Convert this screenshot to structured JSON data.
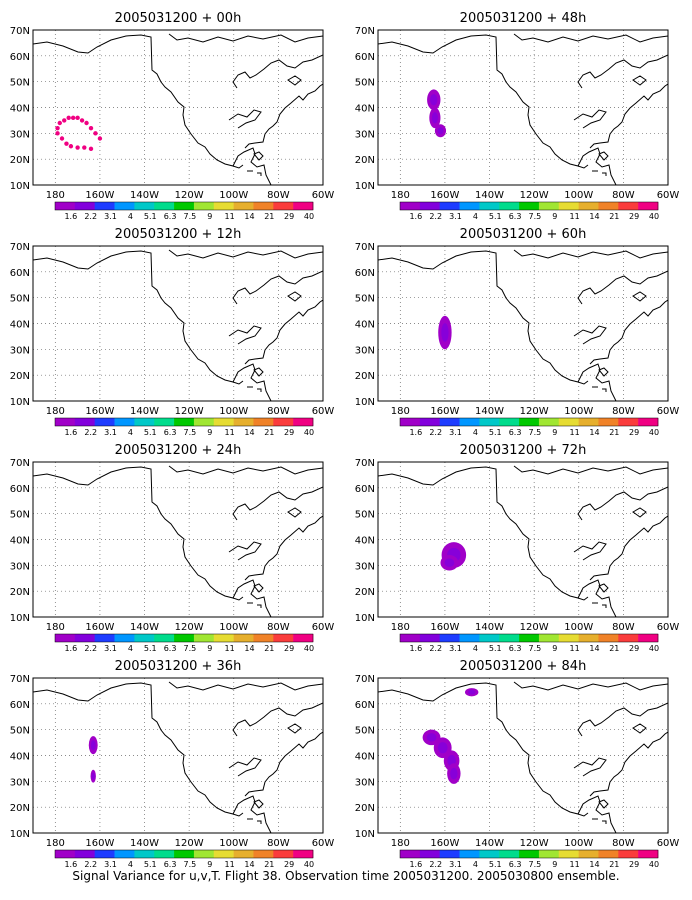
{
  "caption": "Signal Variance for u,v,T. Flight 38. Observation time 2005031200. 2005030800 ensemble.",
  "map_axes": {
    "x_ticks": [
      "180",
      "160W",
      "140W",
      "120W",
      "100W",
      "80W",
      "60W"
    ],
    "y_ticks": [
      "70N",
      "60N",
      "50N",
      "40N",
      "30N",
      "20N",
      "10N"
    ],
    "lon_range": [
      -190,
      -60
    ],
    "lat_range": [
      10,
      70
    ],
    "gridlines": true
  },
  "colorbar": {
    "labels": [
      "1.6",
      "2.2",
      "3.1",
      "4",
      "5.1",
      "6.3",
      "7.5",
      "9",
      "11",
      "14",
      "21",
      "29",
      "40"
    ],
    "colors": [
      "#a000c8",
      "#8200dc",
      "#1e3cff",
      "#0096ff",
      "#00c8c8",
      "#00dc8c",
      "#00c800",
      "#a0e632",
      "#e6dc32",
      "#e6af2d",
      "#f08228",
      "#fa3c3c",
      "#f00082"
    ]
  },
  "panels": [
    {
      "title": "2005031200 + 00h",
      "blobs": [],
      "dots": [
        [
          -179,
          30
        ],
        [
          -179,
          32
        ],
        [
          -178,
          34
        ],
        [
          -176,
          35
        ],
        [
          -174,
          36
        ],
        [
          -172,
          36
        ],
        [
          -170,
          36
        ],
        [
          -168,
          35
        ],
        [
          -166,
          34
        ],
        [
          -164,
          32
        ],
        [
          -162,
          30
        ],
        [
          -160,
          28
        ],
        [
          -177,
          28
        ],
        [
          -175,
          26
        ],
        [
          -173,
          25
        ],
        [
          -170,
          24.5
        ],
        [
          -167,
          24.5
        ],
        [
          -164,
          24
        ]
      ]
    },
    {
      "title": "2005031200 + 12h",
      "blobs": [],
      "dots": []
    },
    {
      "title": "2005031200 + 24h",
      "blobs": [],
      "dots": []
    },
    {
      "title": "2005031200 + 36h",
      "blobs": [
        {
          "lon": -163,
          "lat": 44,
          "rlon": 2,
          "rlat": 3.5
        },
        {
          "lon": -163,
          "lat": 32,
          "rlon": 1.2,
          "rlat": 2.5
        }
      ],
      "dots": []
    },
    {
      "title": "2005031200 + 48h",
      "blobs": [
        {
          "lon": -165,
          "lat": 43,
          "rlon": 3,
          "rlat": 4
        },
        {
          "lon": -164.5,
          "lat": 36,
          "rlon": 2.5,
          "rlat": 4
        },
        {
          "lon": -162,
          "lat": 31,
          "rlon": 2.5,
          "rlat": 2.5
        }
      ],
      "dots": []
    },
    {
      "title": "2005031200 + 60h",
      "blobs": [
        {
          "lon": -160,
          "lat": 36.5,
          "rlon": 3,
          "rlat": 6.5
        }
      ],
      "dots": []
    },
    {
      "title": "2005031200 + 72h",
      "blobs": [
        {
          "lon": -156,
          "lat": 34,
          "rlon": 5.5,
          "rlat": 5
        },
        {
          "lon": -158,
          "lat": 31,
          "rlon": 4,
          "rlat": 3
        }
      ],
      "dots": []
    },
    {
      "title": "2005031200 + 84h",
      "blobs": [
        {
          "lon": -166,
          "lat": 47,
          "rlon": 4,
          "rlat": 3
        },
        {
          "lon": -161,
          "lat": 43,
          "rlon": 4,
          "rlat": 4
        },
        {
          "lon": -157,
          "lat": 38,
          "rlon": 3.5,
          "rlat": 4
        },
        {
          "lon": -156,
          "lat": 33,
          "rlon": 3,
          "rlat": 4
        },
        {
          "lon": -148,
          "lat": 64.5,
          "rlon": 3,
          "rlat": 1.6
        }
      ],
      "dots": []
    }
  ]
}
